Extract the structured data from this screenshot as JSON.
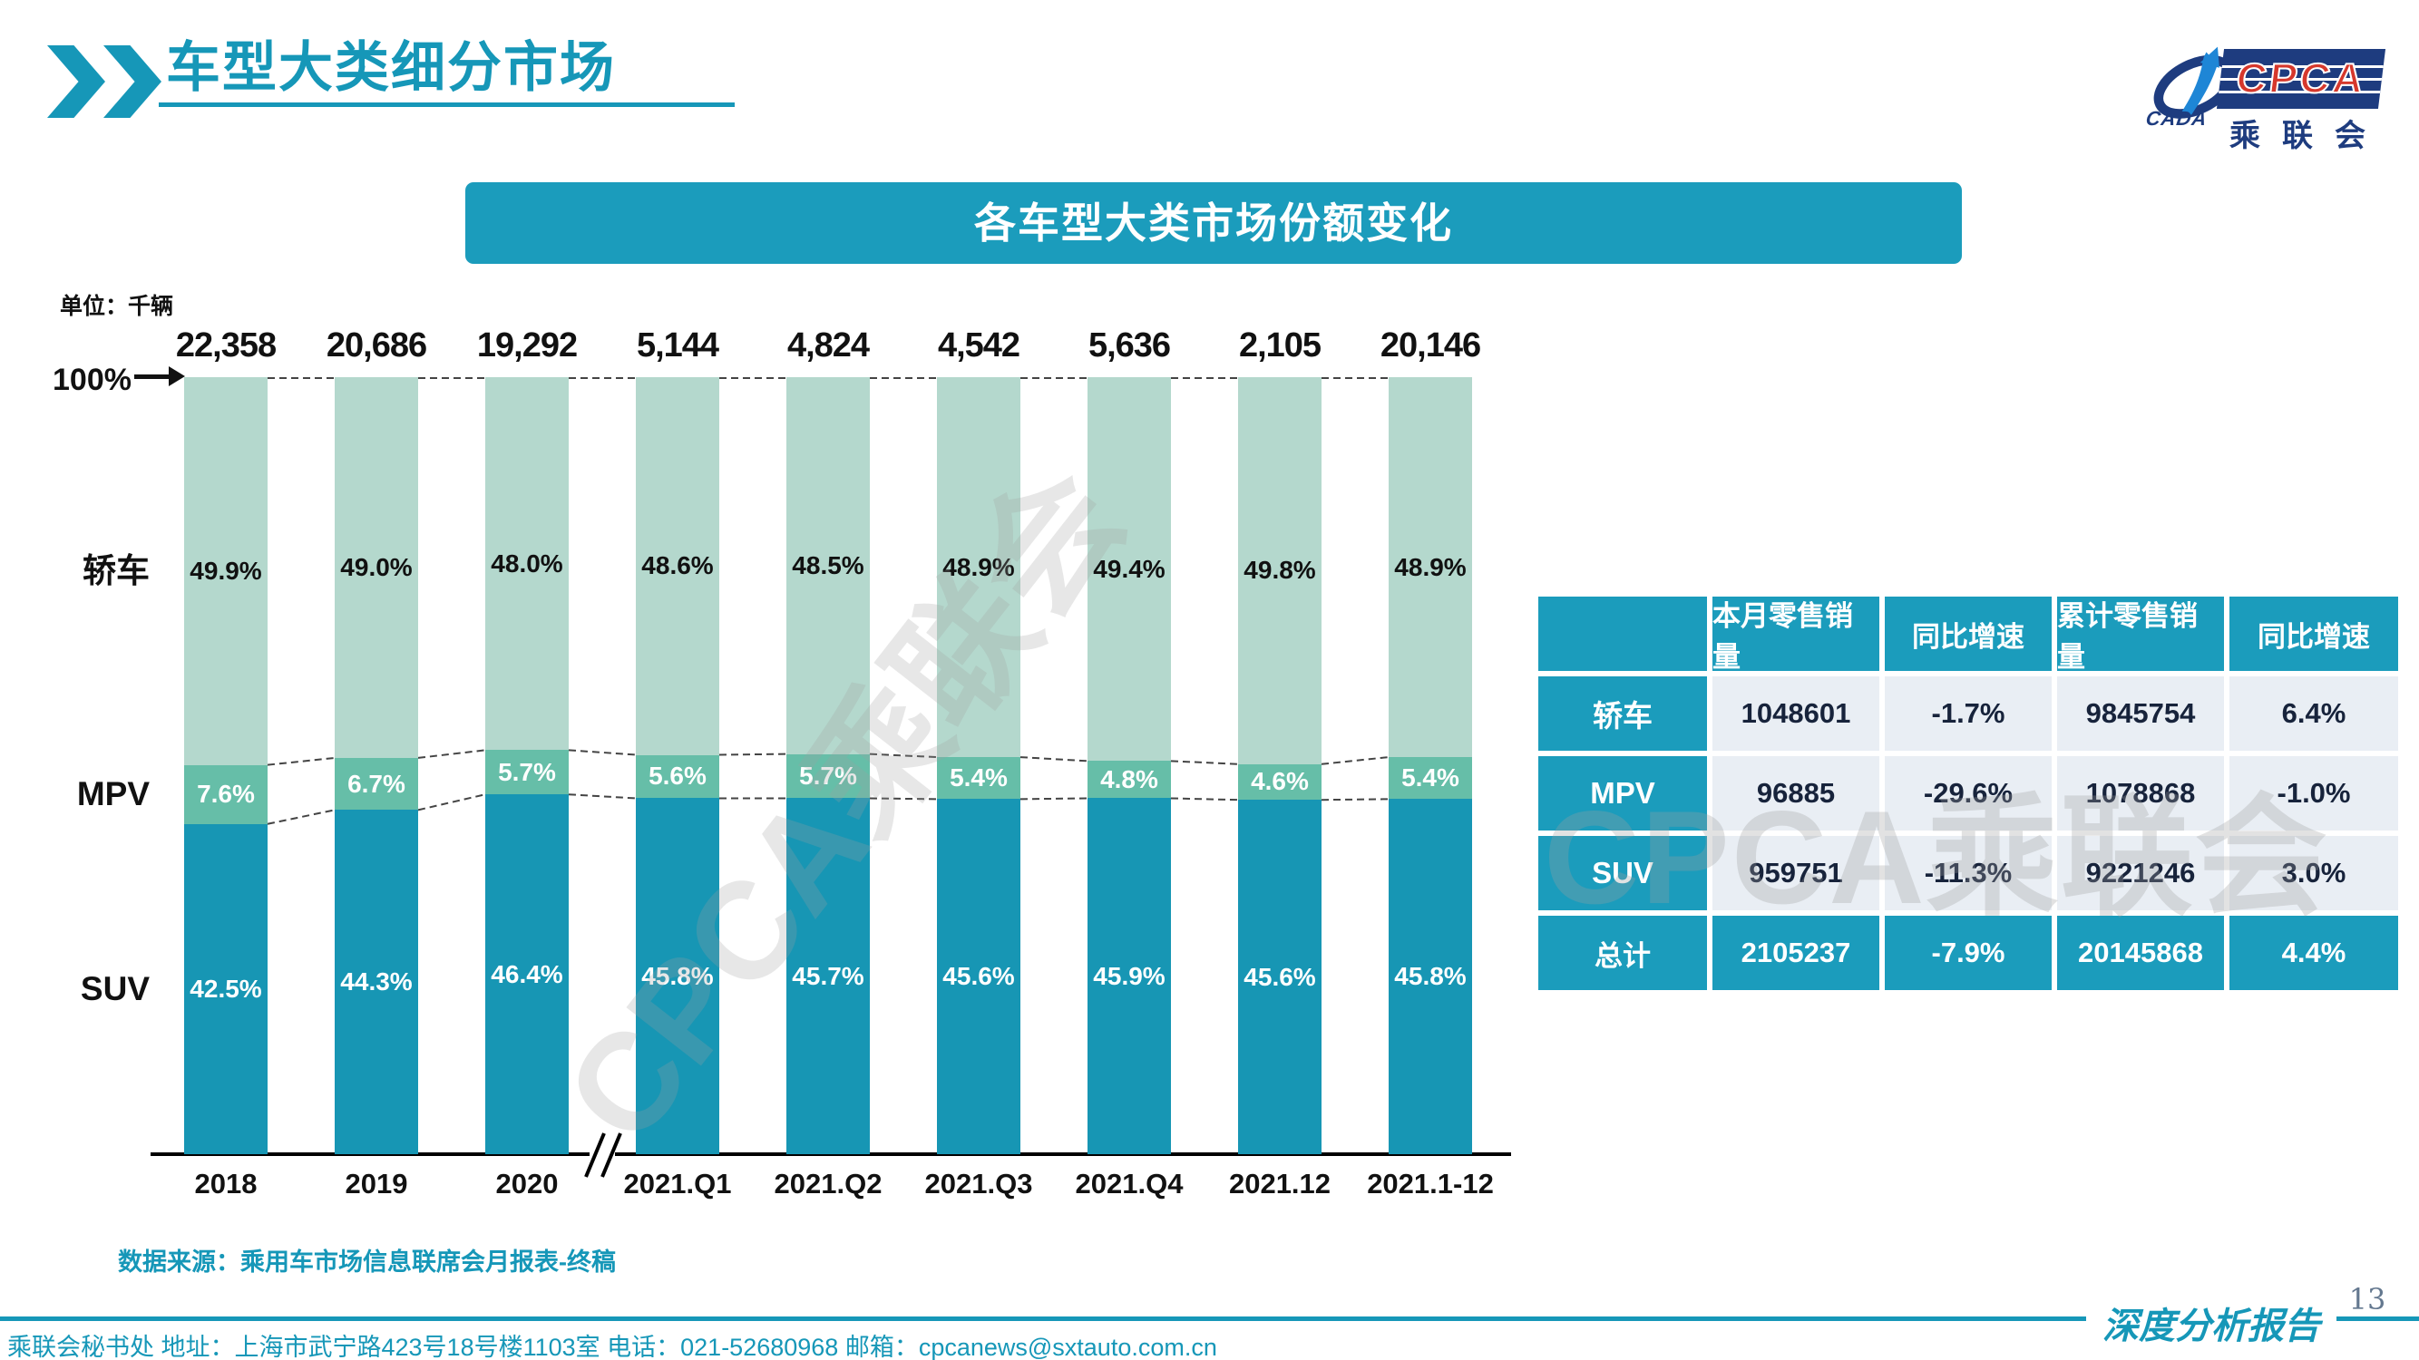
{
  "header": {
    "title": "车型大类细分市场"
  },
  "logo": {
    "cpca": "CPCA",
    "cada": "CADA",
    "cn": "乘联会"
  },
  "banner": {
    "title": "各车型大类市场份额变化"
  },
  "chart": {
    "unit_label": "单位：千辆",
    "hundred_label": "100%",
    "watermark": "CPCA乘联会"
  },
  "chart_data": {
    "type": "bar",
    "stacked": true,
    "title": "各车型大类市场份额变化",
    "unit": "千辆",
    "xlabel": "",
    "ylabel": "市场份额",
    "ylim": [
      0,
      100
    ],
    "grid": false,
    "legend_position": "left-row-labels",
    "axis_break_after": "2020",
    "categories": [
      "2018",
      "2019",
      "2020",
      "2021.Q1",
      "2021.Q2",
      "2021.Q3",
      "2021.Q4",
      "2021.12",
      "2021.1-12"
    ],
    "totals": [
      22358,
      20686,
      19292,
      5144,
      4824,
      4542,
      5636,
      2105,
      20146
    ],
    "totals_display": [
      "22,358",
      "20,686",
      "19,292",
      "5,144",
      "4,824",
      "4,542",
      "5,636",
      "2,105",
      "20,146"
    ],
    "series": [
      {
        "name": "轿车",
        "color": "#B4D8CD",
        "label_color": "#111111",
        "values": [
          49.9,
          49.0,
          48.0,
          48.6,
          48.5,
          48.9,
          49.4,
          49.8,
          48.9
        ]
      },
      {
        "name": "MPV",
        "color": "#66BEA8",
        "label_color": "#ffffff",
        "values": [
          7.6,
          6.7,
          5.7,
          5.6,
          5.7,
          5.4,
          4.8,
          4.6,
          5.4
        ]
      },
      {
        "name": "SUV",
        "color": "#1796B4",
        "label_color": "#ffffff",
        "values": [
          42.5,
          44.3,
          46.4,
          45.8,
          45.7,
          45.6,
          45.9,
          45.6,
          45.8
        ]
      }
    ]
  },
  "table": {
    "watermark": "CPCA乘联会",
    "headers": [
      "",
      "本月零售销量",
      "同比增速",
      "累计零售销量",
      "同比增速"
    ],
    "rows": [
      {
        "label": "轿车",
        "values": [
          "1048601",
          "-1.7%",
          "9845754",
          "6.4%"
        ],
        "total": false
      },
      {
        "label": "MPV",
        "values": [
          "96885",
          "-29.6%",
          "1078868",
          "-1.0%"
        ],
        "total": false
      },
      {
        "label": "SUV",
        "values": [
          "959751",
          "-11.3%",
          "9221246",
          "3.0%"
        ],
        "total": false
      },
      {
        "label": "总计",
        "values": [
          "2105237",
          "-7.9%",
          "20145868",
          "4.4%"
        ],
        "total": true
      }
    ]
  },
  "source": {
    "text": "数据来源：乘用车市场信息联席会月报表-终稿"
  },
  "footer": {
    "info": "乘联会秘书处  地址：上海市武宁路423号18号楼1103室 电话：021-52680968  邮箱：cpcanews@sxtauto.com.cn",
    "page_number": "13",
    "report_label": "深度分析报告"
  },
  "colors": {
    "accent_teal": "#1697B8",
    "banner_teal": "#1B9CBC",
    "sedan_segment": "#B4D8CD",
    "mpv_segment": "#66BEA8",
    "suv_segment": "#1796B4",
    "table_cell_bg": "#E9EEF4",
    "logo_navy": "#1E3C7F",
    "logo_red": "#D6382C"
  }
}
